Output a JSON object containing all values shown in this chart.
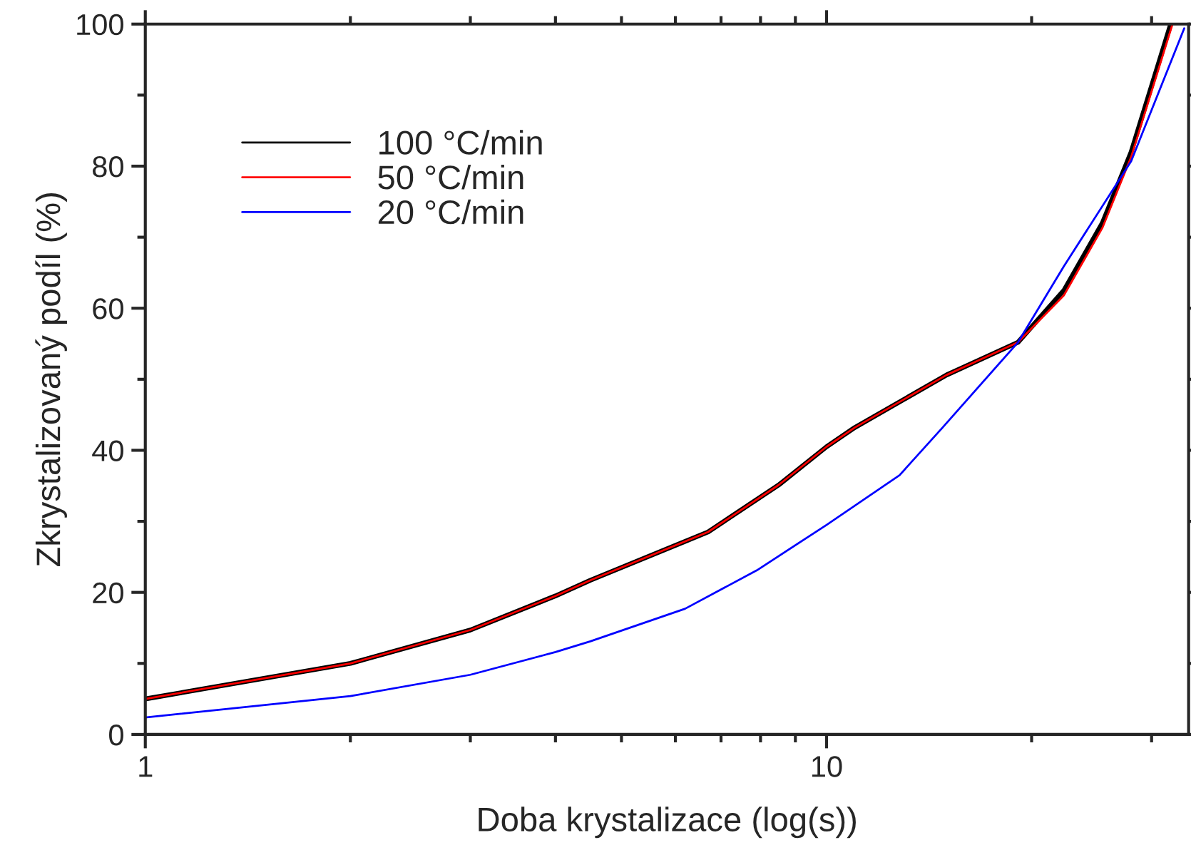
{
  "chart_data": {
    "type": "line",
    "xlabel": "Doba krystalizace (log(s))",
    "ylabel": "Zkrystalizovaný podíl (%)",
    "log": "x",
    "xlim": [
      1,
      34
    ],
    "xticks": [
      1,
      10
    ],
    "ylim": [
      0,
      100
    ],
    "yticks": [
      0,
      20,
      40,
      60,
      80,
      100
    ],
    "grid": false,
    "legend": "top left",
    "marker": "none",
    "line_style": "solid",
    "series": [
      {
        "name": "100 °C/min",
        "color": "#000000",
        "x": [
          1,
          2,
          3,
          4,
          4.5,
          6.7,
          8.5,
          10,
          11,
          15,
          19.1,
          22.3,
          25.4,
          28,
          32
        ],
        "values": [
          5.0,
          10.0,
          14.7,
          19.5,
          21.7,
          28.5,
          35.1,
          40.5,
          43.2,
          50.6,
          55.2,
          62.5,
          72.0,
          82.0,
          100
        ]
      },
      {
        "name": "50 °C/min",
        "color": "#ff0000",
        "x": [
          1,
          2,
          3,
          4,
          4.5,
          6.7,
          8.5,
          10,
          11,
          15,
          19.1,
          22.3,
          25.4,
          28,
          32.2
        ],
        "values": [
          5.0,
          10.0,
          14.7,
          19.5,
          21.7,
          28.5,
          35.1,
          40.5,
          43.2,
          50.6,
          55.2,
          61.8,
          71.3,
          81.3,
          100
        ]
      },
      {
        "name": "20 °C/min",
        "color": "#0000ff",
        "x": [
          1,
          2,
          3,
          4,
          4.5,
          6.2,
          7.9,
          10,
          12.8,
          14.8,
          19.1,
          22.3,
          28,
          33.5
        ],
        "values": [
          2.4,
          5.4,
          8.4,
          11.6,
          13.1,
          17.7,
          23.1,
          29.5,
          36.5,
          43.2,
          55.2,
          65.9,
          80.7,
          99.4
        ]
      }
    ]
  }
}
